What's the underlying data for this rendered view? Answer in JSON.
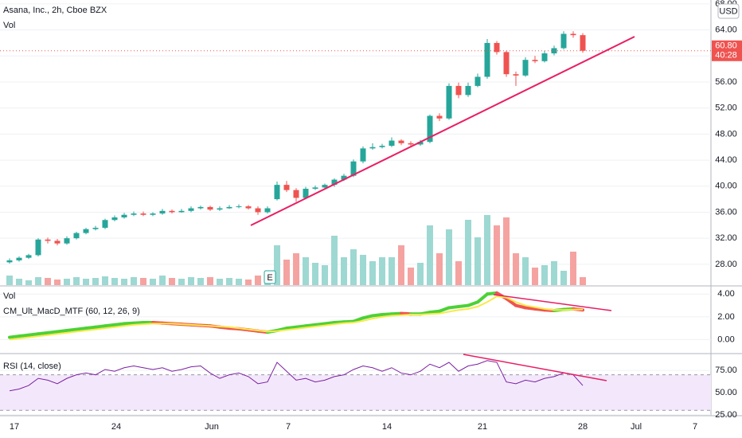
{
  "chart_data": [
    {
      "type": "candlestick",
      "title": "Asana, Inc., 2h, Cboe BZX",
      "currency": "USD",
      "open": [
        28.3,
        28.6,
        29.0,
        29.4,
        31.8,
        31.6,
        31.2,
        32.0,
        32.8,
        33.4,
        33.6,
        34.8,
        35.2,
        35.6,
        35.8,
        35.6,
        35.8,
        36.2,
        36.0,
        36.2,
        36.6,
        36.8,
        36.4,
        36.6,
        36.8,
        36.9,
        36.6,
        36.0,
        38.0,
        40.2,
        39.4,
        38.2,
        39.6,
        39.8,
        40.2,
        41.0,
        41.6,
        43.8,
        45.8,
        46.0,
        46.2,
        47.0,
        46.6,
        46.4,
        46.8,
        50.8,
        50.4,
        55.4,
        54.0,
        55.4,
        56.8,
        62.0,
        60.6,
        57.2,
        57.0,
        59.4,
        59.2,
        60.4,
        61.2,
        63.4,
        63.2
      ],
      "high": [
        28.9,
        29.2,
        29.6,
        32.0,
        32.1,
        31.9,
        32.3,
        33.0,
        33.6,
        33.9,
        35.0,
        35.5,
        35.9,
        36.1,
        36.1,
        36.0,
        36.5,
        36.4,
        36.5,
        36.9,
        37.0,
        37.0,
        36.9,
        37.1,
        37.2,
        37.1,
        36.9,
        36.9,
        40.7,
        40.8,
        39.7,
        39.9,
        40.1,
        40.4,
        41.2,
        41.9,
        44.1,
        46.1,
        46.6,
        46.5,
        47.5,
        47.2,
        46.9,
        47.1,
        51.0,
        51.2,
        55.8,
        55.9,
        55.9,
        57.3,
        62.6,
        62.3,
        60.8,
        57.6,
        59.8,
        60.0,
        60.8,
        61.6,
        63.8,
        63.8,
        63.5
      ],
      "low": [
        28.1,
        28.4,
        28.8,
        29.2,
        31.2,
        30.9,
        31.0,
        31.8,
        32.6,
        33.2,
        33.4,
        34.6,
        35.0,
        35.4,
        35.4,
        35.4,
        35.6,
        35.8,
        35.9,
        36.0,
        36.4,
        36.2,
        36.2,
        36.5,
        36.6,
        36.4,
        35.6,
        35.8,
        37.8,
        39.1,
        37.6,
        38.0,
        39.4,
        39.6,
        39.9,
        40.8,
        41.4,
        43.5,
        45.6,
        45.8,
        46.0,
        46.3,
        46.1,
        46.2,
        46.6,
        50.0,
        50.2,
        53.5,
        53.7,
        55.2,
        56.5,
        60.2,
        56.8,
        55.4,
        56.8,
        58.9,
        59.0,
        60.1,
        61.0,
        62.8,
        60.5
      ],
      "close": [
        28.6,
        29.0,
        29.4,
        31.8,
        31.6,
        31.2,
        32.0,
        32.8,
        33.4,
        33.6,
        34.8,
        35.2,
        35.6,
        35.8,
        35.6,
        35.8,
        36.2,
        36.0,
        36.2,
        36.6,
        36.8,
        36.4,
        36.6,
        36.8,
        36.9,
        36.6,
        36.0,
        36.6,
        40.2,
        39.4,
        38.2,
        39.6,
        39.8,
        40.2,
        41.0,
        41.6,
        43.8,
        45.8,
        46.0,
        46.2,
        47.0,
        46.6,
        46.4,
        46.8,
        50.8,
        50.4,
        55.4,
        54.0,
        55.4,
        56.8,
        62.0,
        60.6,
        57.2,
        57.0,
        59.4,
        59.2,
        60.4,
        61.2,
        63.4,
        63.2,
        60.8
      ],
      "up_color": "#26a69a",
      "down_color": "#ef5350",
      "ylim": [
        24.8,
        68.6
      ],
      "yticks": [
        {
          "value": 28,
          "label": "28.00"
        },
        {
          "value": 32,
          "label": "32.00"
        },
        {
          "value": 36,
          "label": "36.00"
        },
        {
          "value": 40,
          "label": "40.00"
        },
        {
          "value": 44,
          "label": "44.00"
        },
        {
          "value": 48,
          "label": "48.00"
        },
        {
          "value": 52,
          "label": "52.00"
        },
        {
          "value": 56,
          "label": "56.00"
        },
        {
          "value": 60,
          "label": "60.00"
        },
        {
          "value": 64,
          "label": "64.00"
        },
        {
          "value": 68,
          "label": "68.00"
        }
      ],
      "grid": true,
      "xtick_labels": [
        "17",
        "24",
        "Jun",
        "7",
        "14",
        "21",
        "28",
        "Jul",
        "7"
      ],
      "last_price": {
        "value": 60.8,
        "label": "60.80"
      },
      "countdown": "40:28",
      "earnings_marker": "E",
      "volume": {
        "name": "Vol",
        "ylim": [
          0,
          100
        ],
        "up_color": "#9ed8d2",
        "down_color": "#f5a3a1",
        "values": [
          12,
          8,
          6,
          10,
          9,
          7,
          8,
          10,
          8,
          9,
          11,
          9,
          8,
          10,
          9,
          8,
          12,
          9,
          8,
          10,
          9,
          10,
          8,
          9,
          8,
          7,
          12,
          10,
          50,
          32,
          40,
          35,
          28,
          25,
          62,
          35,
          45,
          38,
          30,
          35,
          35,
          50,
          22,
          28,
          75,
          40,
          70,
          30,
          82,
          60,
          88,
          75,
          85,
          40,
          35,
          22,
          25,
          30,
          18,
          42,
          10
        ]
      }
    },
    {
      "type": "line",
      "title": "CM_Ult_MacD_MTF (60, 12, 26, 9)",
      "overlay_label": "Vol",
      "ylim": [
        -1.16,
        4.65
      ],
      "yticks": [
        {
          "value": 0,
          "label": "0.00"
        },
        {
          "value": 2,
          "label": "2.00"
        },
        {
          "value": 4,
          "label": "4.00"
        }
      ],
      "grid": true,
      "series": [
        {
          "up_color": "#4cd137",
          "down_color": "#ef5350",
          "width": 4,
          "values": [
            0.2,
            0.3,
            0.4,
            0.5,
            0.6,
            0.7,
            0.8,
            0.9,
            1.0,
            1.1,
            1.2,
            1.3,
            1.4,
            1.45,
            1.5,
            1.5,
            1.45,
            1.4,
            1.35,
            1.3,
            1.25,
            1.2,
            1.1,
            1.0,
            0.95,
            0.85,
            0.75,
            0.65,
            0.8,
            1.0,
            1.1,
            1.2,
            1.3,
            1.4,
            1.5,
            1.55,
            1.6,
            1.9,
            2.1,
            2.2,
            2.25,
            2.3,
            2.25,
            2.25,
            2.4,
            2.5,
            2.8,
            2.9,
            3.0,
            3.3,
            4.0,
            4.1,
            3.6,
            3.0,
            2.8,
            2.7,
            2.6,
            2.55,
            2.65,
            2.7,
            2.6
          ]
        },
        {
          "color": "#f9e94a",
          "width": 2,
          "values": [
            0.0,
            0.1,
            0.2,
            0.3,
            0.4,
            0.5,
            0.6,
            0.7,
            0.8,
            0.9,
            1.0,
            1.1,
            1.2,
            1.3,
            1.35,
            1.4,
            1.4,
            1.4,
            1.35,
            1.3,
            1.25,
            1.2,
            1.15,
            1.1,
            1.0,
            0.9,
            0.8,
            0.7,
            0.75,
            0.85,
            0.95,
            1.05,
            1.15,
            1.25,
            1.35,
            1.45,
            1.5,
            1.65,
            1.85,
            2.0,
            2.1,
            2.15,
            2.2,
            2.2,
            2.25,
            2.3,
            2.45,
            2.6,
            2.7,
            2.9,
            3.3,
            3.8,
            3.7,
            3.3,
            3.0,
            2.85,
            2.7,
            2.6,
            2.6,
            2.65,
            2.65
          ]
        }
      ]
    },
    {
      "type": "line",
      "title": "RSI (14, close)",
      "ylim": [
        24,
        93
      ],
      "yticks": [
        {
          "value": 25,
          "label": "25.00"
        },
        {
          "value": 50,
          "label": "50.00"
        },
        {
          "value": 75,
          "label": "75.00"
        }
      ],
      "grid": true,
      "band": [
        30,
        70
      ],
      "band_color": "#f3e8fb",
      "series": [
        {
          "color": "#7b1fa2",
          "width": 1,
          "values": [
            52,
            54,
            58,
            66,
            64,
            60,
            66,
            70,
            72,
            70,
            76,
            74,
            78,
            80,
            78,
            76,
            78,
            74,
            76,
            79,
            80,
            72,
            66,
            70,
            72,
            68,
            60,
            62,
            84,
            74,
            64,
            66,
            62,
            64,
            68,
            70,
            76,
            80,
            78,
            74,
            78,
            72,
            70,
            74,
            82,
            78,
            84,
            74,
            80,
            82,
            86,
            84,
            62,
            60,
            64,
            62,
            66,
            68,
            72,
            70,
            58
          ]
        }
      ]
    }
  ]
}
